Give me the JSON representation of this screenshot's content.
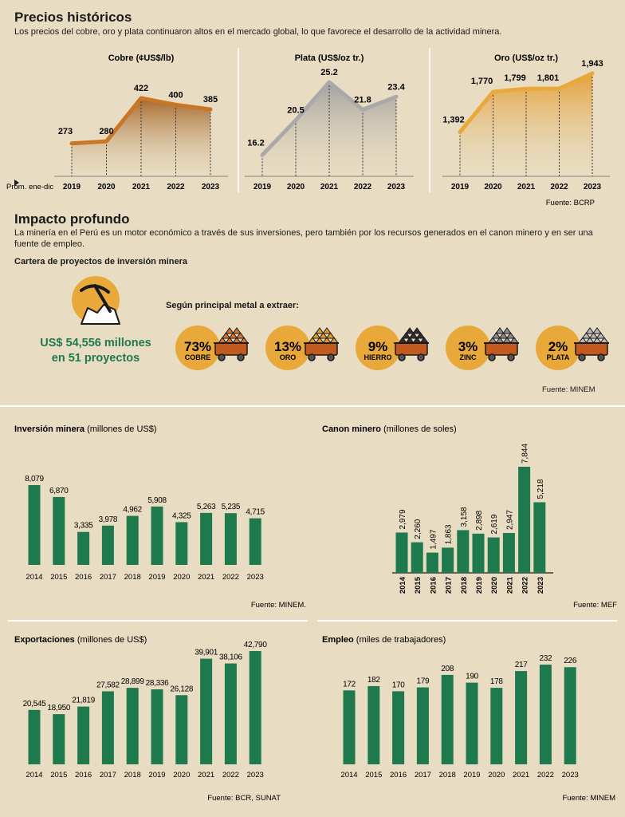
{
  "section1": {
    "title": "Precios históricos",
    "subtitle": "Los precios del cobre, oro y plata continuaron altos en el mercado global, lo que favorece el desarrollo de la actividad minera.",
    "source": "Fuente: BCRP"
  },
  "section2": {
    "title": "Impacto profundo",
    "text": "La minería en el Perú es un motor económico a través de sus inversiones, pero también por los recursos generados en el canon minero y en ser una fuente de empleo.",
    "portfolio_heading": "Cartera de proyectos de inversión minera",
    "total_line1": "US$  54,556 millones",
    "total_line2": "en 51 proyectos",
    "by_metal_label": "Según principal metal a extraer:",
    "metals": [
      {
        "pct": "73%",
        "name": "COBRE",
        "ore": "#d9732a"
      },
      {
        "pct": "13%",
        "name": "ORO",
        "ore": "#e39a2a"
      },
      {
        "pct": "9%",
        "name": "HIERRO",
        "ore": "#2f2f2f"
      },
      {
        "pct": "3%",
        "name": "ZINC",
        "ore": "#8a8a8a"
      },
      {
        "pct": "2%",
        "name": "PLATA",
        "ore": "#b8b8b8"
      }
    ],
    "source": "Fuente: MINEM"
  },
  "chart_data": [
    {
      "type": "area",
      "title": "Cobre (¢US$/lb)",
      "xlabel": "Prom. ene-dic",
      "x": [
        "2019",
        "2020",
        "2021",
        "2022",
        "2023"
      ],
      "values": [
        273,
        280,
        422,
        400,
        385
      ],
      "labels": [
        "273",
        "280",
        "422",
        "400",
        "385"
      ],
      "color": "#c97626"
    },
    {
      "type": "area",
      "title": "Plata (US$/oz tr.)",
      "x": [
        "2019",
        "2020",
        "2021",
        "2022",
        "2023"
      ],
      "values": [
        16.2,
        20.5,
        25.2,
        21.8,
        23.4
      ],
      "labels": [
        "16.2",
        "20.5",
        "25.2",
        "21.8",
        "23.4"
      ],
      "color": "#a9a9a9"
    },
    {
      "type": "area",
      "title": "Oro (US$/oz tr.)",
      "x": [
        "2019",
        "2020",
        "2021",
        "2022",
        "2023"
      ],
      "values": [
        1392,
        1770,
        1799,
        1801,
        1943
      ],
      "labels": [
        "1,392",
        "1,770",
        "1,799",
        "1,801",
        "1,943"
      ],
      "color": "#e9a93a"
    },
    {
      "type": "bar",
      "title": "Inversión minera",
      "title_suffix": " (millones de US$)",
      "categories": [
        "2014",
        "2015",
        "2016",
        "2017",
        "2018",
        "2019",
        "2020",
        "2021",
        "2022",
        "2023"
      ],
      "values": [
        8079,
        6870,
        3335,
        3978,
        4962,
        5908,
        4325,
        5263,
        5235,
        4715
      ],
      "labels": [
        "8,079",
        "6,870",
        "3,335",
        "3,978",
        "4,962",
        "5,908",
        "4,325",
        "5,263",
        "5,235",
        "4,715"
      ],
      "source": "Fuente: MINEM."
    },
    {
      "type": "bar",
      "title": "Canon minero",
      "title_suffix": " (millones de soles)",
      "categories": [
        "2014",
        "2015",
        "2016",
        "2017",
        "2018",
        "2019",
        "2020",
        "2021",
        "2022",
        "2023"
      ],
      "values": [
        2979,
        2260,
        1497,
        1863,
        3158,
        2898,
        2619,
        2947,
        7844,
        5218
      ],
      "labels": [
        "2,979",
        "2,260",
        "1,497",
        "1,863",
        "3,158",
        "2,898",
        "2,619",
        "2,947",
        "7,844",
        "5,218"
      ],
      "source": "Fuente: MEF"
    },
    {
      "type": "bar",
      "title": "Exportaciones",
      "title_suffix": " (millones de US$)",
      "categories": [
        "2014",
        "2015",
        "2016",
        "2017",
        "2018",
        "2019",
        "2020",
        "2021",
        "2022",
        "2023"
      ],
      "values": [
        20545,
        18950,
        21819,
        27582,
        28899,
        28336,
        26128,
        39901,
        38106,
        42790
      ],
      "labels": [
        "20,545",
        "18,950",
        "21,819",
        "27,582",
        "28,899",
        "28,336",
        "26,128",
        "39,901",
        "38,106",
        "42,790"
      ],
      "source": "Fuente: BCR, SUNAT"
    },
    {
      "type": "bar",
      "title": "Empleo",
      "title_suffix": " (miles de trabajadores)",
      "categories": [
        "2014",
        "2015",
        "2016",
        "2017",
        "2018",
        "2019",
        "2020",
        "2021",
        "2022",
        "2023"
      ],
      "values": [
        172,
        182,
        170,
        179,
        208,
        190,
        178,
        217,
        232,
        226
      ],
      "labels": [
        "172",
        "182",
        "170",
        "179",
        "208",
        "190",
        "178",
        "217",
        "232",
        "226"
      ],
      "source": "Fuente: MINEM"
    }
  ]
}
